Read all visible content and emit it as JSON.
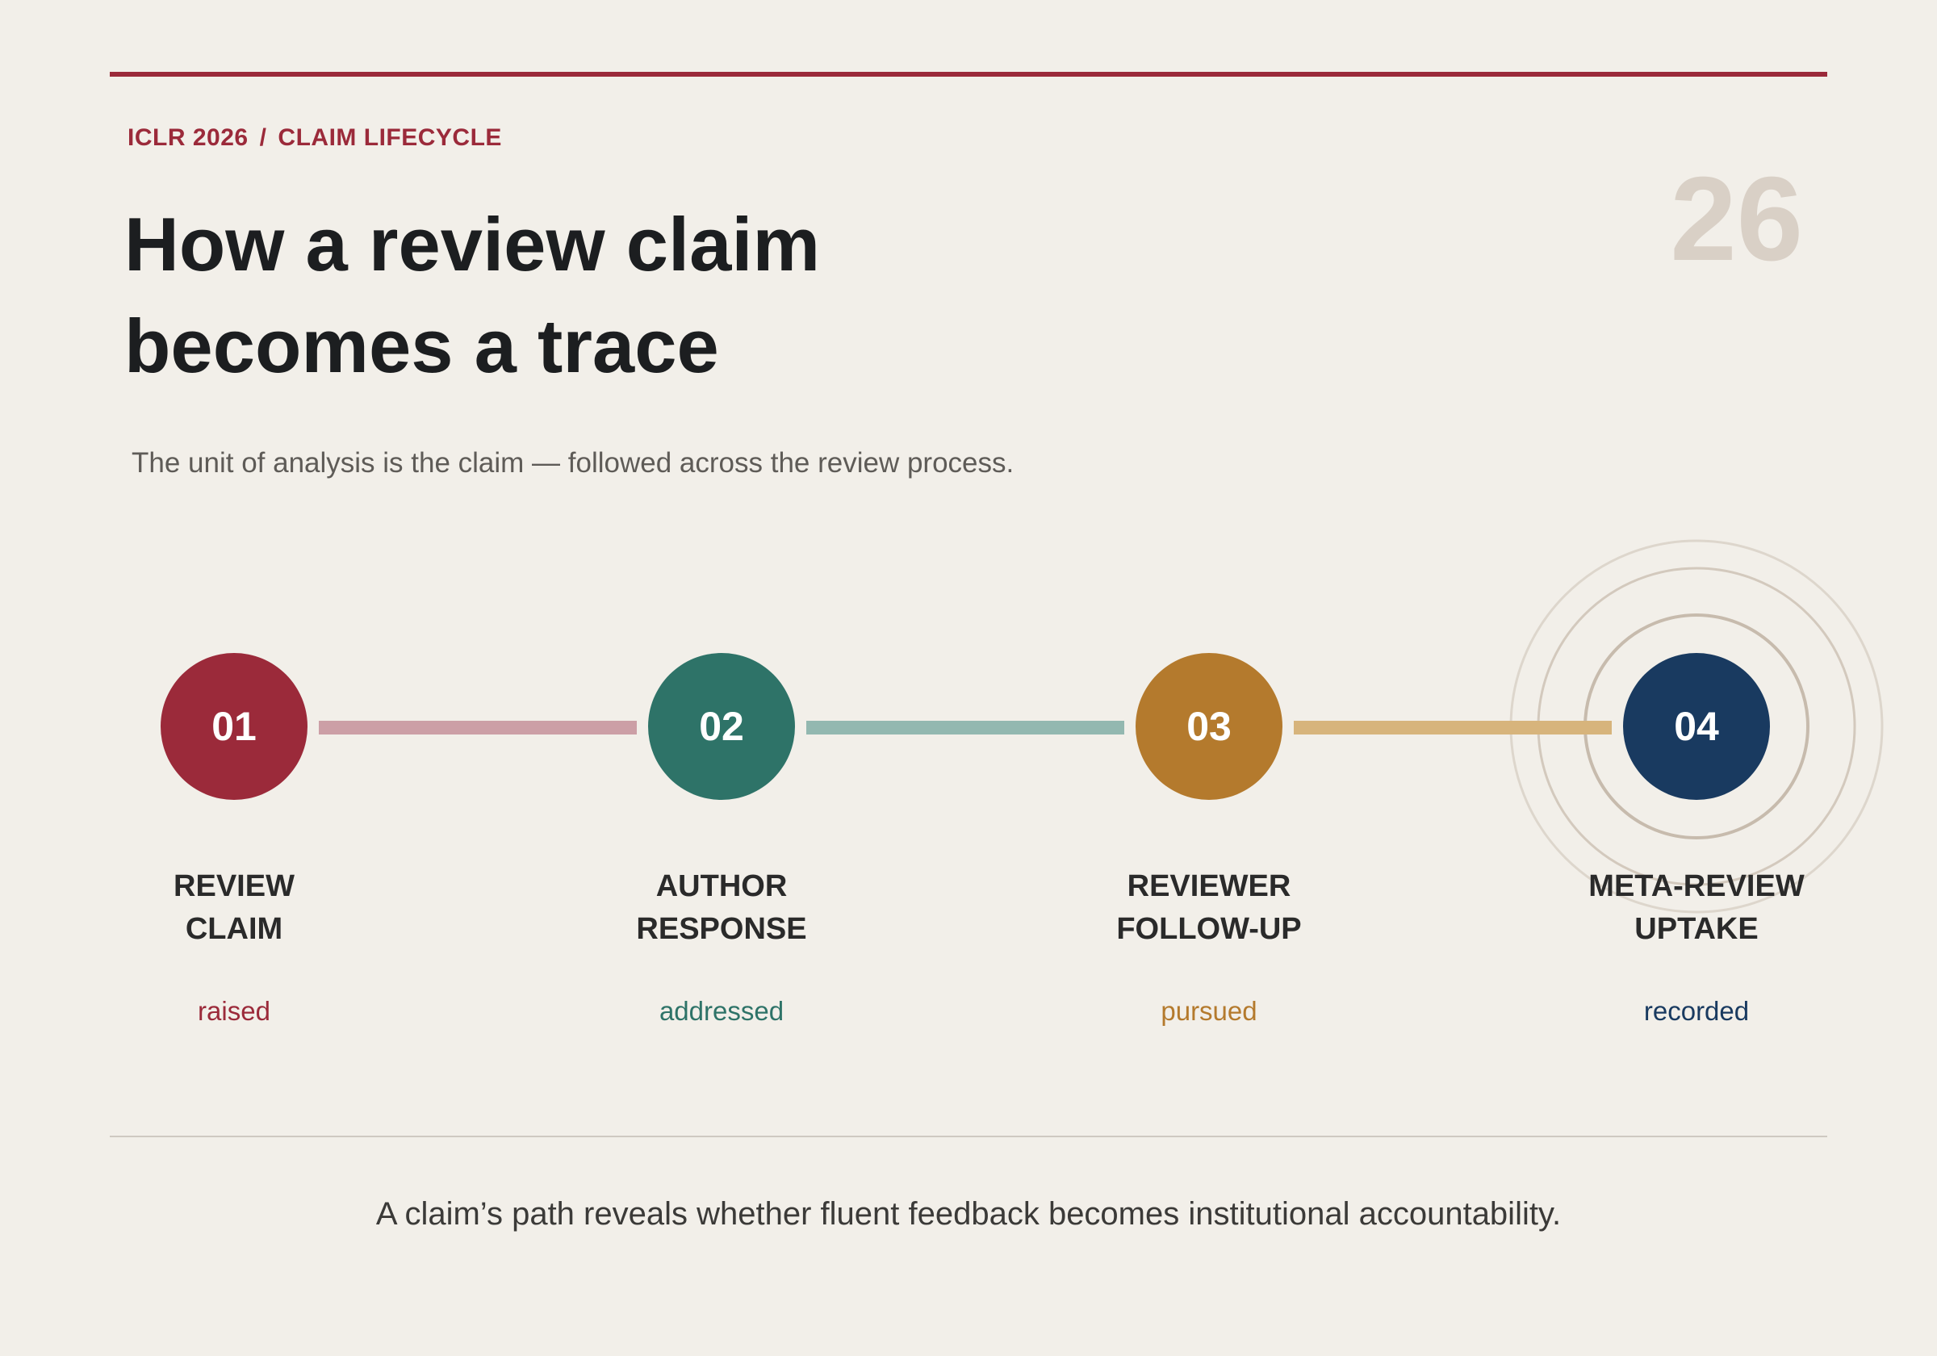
{
  "header": {
    "kicker_left": "ICLR 2026",
    "kicker_sep": "/",
    "kicker_right": "CLAIM LIFECYCLE",
    "page_number": "26",
    "title_line1": "How a review claim",
    "title_line2": "becomes a trace",
    "subtitle": "The unit of analysis is the claim — followed across the review process."
  },
  "colors": {
    "accent": "#9b2a3a",
    "step1": "#9b2a3a",
    "step2": "#2e7368",
    "step3": "#b47a2d",
    "step4": "#193a60",
    "connector1": "#cc9fa6",
    "connector2": "#93b8b0",
    "connector3": "#d7b47c"
  },
  "steps": [
    {
      "number": "01",
      "label_line1": "REVIEW",
      "label_line2": "CLAIM",
      "status": "raised"
    },
    {
      "number": "02",
      "label_line1": "AUTHOR",
      "label_line2": "RESPONSE",
      "status": "addressed"
    },
    {
      "number": "03",
      "label_line1": "REVIEWER",
      "label_line2": "FOLLOW-UP",
      "status": "pursued"
    },
    {
      "number": "04",
      "label_line1": "META-REVIEW",
      "label_line2": "UPTAKE",
      "status": "recorded"
    }
  ],
  "footer": {
    "takeaway": "A claim’s path reveals whether fluent feedback becomes institutional accountability."
  }
}
